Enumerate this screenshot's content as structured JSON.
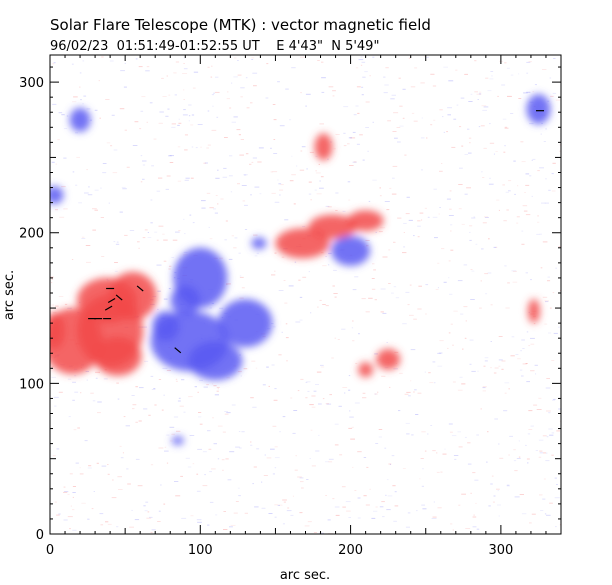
{
  "header": {
    "title": "Solar Flare Telescope (MTK) : vector magnetic field",
    "subtitle": "96/02/23  01:51:49-01:52:55 UT    E 4'43\"  N 5'49\""
  },
  "chart_data": {
    "type": "heatmap",
    "xlabel": "arc sec.",
    "ylabel": "arc sec.",
    "xlim": [
      0,
      340
    ],
    "ylim": [
      0,
      318
    ],
    "xticks": [
      0,
      100,
      200,
      300
    ],
    "yticks": [
      0,
      100,
      200,
      300
    ],
    "grid": false,
    "colors": {
      "positive": "#f24a4a",
      "negative": "#5a5af2",
      "vector": "#000000"
    },
    "regions": [
      {
        "polarity": "positive",
        "x": 15,
        "y": 128,
        "rx": 20,
        "ry": 22
      },
      {
        "polarity": "positive",
        "x": 40,
        "y": 135,
        "rx": 22,
        "ry": 24
      },
      {
        "polarity": "positive",
        "x": 55,
        "y": 158,
        "rx": 16,
        "ry": 16
      },
      {
        "polarity": "positive",
        "x": 38,
        "y": 155,
        "rx": 20,
        "ry": 15
      },
      {
        "polarity": "positive",
        "x": 45,
        "y": 118,
        "rx": 16,
        "ry": 13
      },
      {
        "polarity": "positive",
        "x": 3,
        "y": 135,
        "rx": 7,
        "ry": 12
      },
      {
        "polarity": "positive",
        "x": 168,
        "y": 193,
        "rx": 18,
        "ry": 10
      },
      {
        "polarity": "positive",
        "x": 188,
        "y": 204,
        "rx": 16,
        "ry": 8
      },
      {
        "polarity": "positive",
        "x": 210,
        "y": 208,
        "rx": 12,
        "ry": 7
      },
      {
        "polarity": "positive",
        "x": 225,
        "y": 116,
        "rx": 8,
        "ry": 7
      },
      {
        "polarity": "positive",
        "x": 210,
        "y": 109,
        "rx": 5,
        "ry": 5
      },
      {
        "polarity": "positive",
        "x": 182,
        "y": 257,
        "rx": 6,
        "ry": 9
      },
      {
        "polarity": "positive",
        "x": 322,
        "y": 148,
        "rx": 4,
        "ry": 8
      },
      {
        "polarity": "negative",
        "x": 93,
        "y": 128,
        "rx": 26,
        "ry": 20
      },
      {
        "polarity": "negative",
        "x": 110,
        "y": 115,
        "rx": 18,
        "ry": 13
      },
      {
        "polarity": "negative",
        "x": 100,
        "y": 170,
        "rx": 18,
        "ry": 20
      },
      {
        "polarity": "negative",
        "x": 90,
        "y": 155,
        "rx": 10,
        "ry": 10
      },
      {
        "polarity": "negative",
        "x": 130,
        "y": 140,
        "rx": 18,
        "ry": 16
      },
      {
        "polarity": "negative",
        "x": 77,
        "y": 138,
        "rx": 9,
        "ry": 10
      },
      {
        "polarity": "negative",
        "x": 200,
        "y": 188,
        "rx": 13,
        "ry": 10
      },
      {
        "polarity": "negative",
        "x": 139,
        "y": 193,
        "rx": 5,
        "ry": 4
      },
      {
        "polarity": "negative",
        "x": 325,
        "y": 282,
        "rx": 8,
        "ry": 10
      },
      {
        "polarity": "negative",
        "x": 20,
        "y": 275,
        "rx": 7,
        "ry": 8
      },
      {
        "polarity": "negative",
        "x": 3,
        "y": 225,
        "rx": 6,
        "ry": 6
      },
      {
        "polarity": "negative",
        "x": 85,
        "y": 62,
        "rx": 4,
        "ry": 3
      }
    ],
    "vectors": [
      {
        "x": 28,
        "y": 143,
        "angle": 0
      },
      {
        "x": 32,
        "y": 143,
        "angle": 0
      },
      {
        "x": 38,
        "y": 143,
        "angle": 0
      },
      {
        "x": 40,
        "y": 163,
        "angle": 0
      },
      {
        "x": 41,
        "y": 155,
        "angle": 30
      },
      {
        "x": 39,
        "y": 150,
        "angle": 30
      },
      {
        "x": 46,
        "y": 157,
        "angle": -40
      },
      {
        "x": 60,
        "y": 163,
        "angle": -40
      },
      {
        "x": 85,
        "y": 122,
        "angle": -40
      },
      {
        "x": 326,
        "y": 281,
        "angle": 0
      }
    ]
  }
}
